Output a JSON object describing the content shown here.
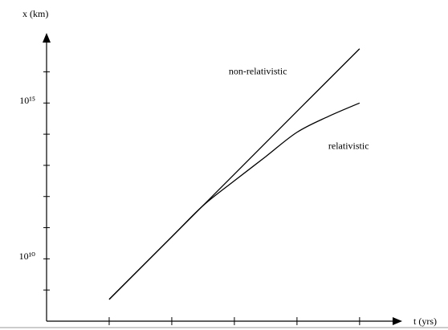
{
  "chart_data": {
    "type": "line",
    "y_label": "x (km)",
    "x_label": "t (yrs)",
    "log_y": true,
    "xlim": [
      0,
      5.63
    ],
    "ylim": [
      100000000.0,
      1.4e+17
    ],
    "xticks": [
      {
        "value": 1,
        "label": null
      },
      {
        "value": 2,
        "label": null
      },
      {
        "value": 3,
        "label": null
      },
      {
        "value": 4,
        "label": null
      },
      {
        "value": 5,
        "label": null
      }
    ],
    "yticks": [
      {
        "value": 1000000000.0,
        "label": null
      },
      {
        "value": 10000000000.0,
        "label": "10¹⁰"
      },
      {
        "value": 100000000000.0,
        "label": null
      },
      {
        "value": 1000000000000.0,
        "label": null
      },
      {
        "value": 10000000000000.0,
        "label": null
      },
      {
        "value": 100000000000000.0,
        "label": null
      },
      {
        "value": 1000000000000000.0,
        "label": "10¹⁵"
      },
      {
        "value": 1e+16,
        "label": null
      }
    ],
    "series": [
      {
        "name": "non-relativistic",
        "color": "#000000",
        "x": [
          1,
          2,
          3,
          4,
          5
        ],
        "values": [
          500000000.0,
          51000000000.0,
          5200000000000.0,
          540000000000000.0,
          5.5e+16
        ]
      },
      {
        "name": "relativistic",
        "color": "#000000",
        "x": [
          1,
          2,
          2.5,
          3,
          3.5,
          4,
          4.5,
          5
        ],
        "values": [
          500000000.0,
          51000000000.0,
          510000000000.0,
          3200000000000.0,
          19000000000000.0,
          115000000000000.0,
          370000000000000.0,
          1000000000000000.0
        ]
      }
    ]
  }
}
